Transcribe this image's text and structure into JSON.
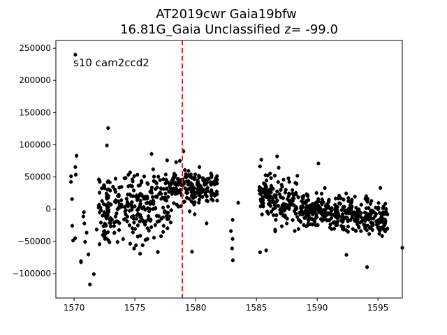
{
  "chart_data": {
    "type": "scatter",
    "title_line1": "AT2019cwr  Gaia19bfw",
    "title_line2": "16.81G_Gaia Unclassified z= -99.0",
    "annotation": "s10 cam2ccd2",
    "xlabel": "",
    "ylabel": "",
    "xlim": [
      1568.5,
      1597
    ],
    "ylim": [
      -138000,
      262000
    ],
    "x_ticks": [
      1570,
      1575,
      1580,
      1585,
      1590,
      1595
    ],
    "y_ticks": [
      -100000,
      -50000,
      0,
      50000,
      100000,
      150000,
      200000,
      250000
    ],
    "x_tick_labels": [
      "1570",
      "1575",
      "1580",
      "1585",
      "1590",
      "1595"
    ],
    "y_tick_labels": [
      "−100000",
      "−50000",
      "0",
      "50000",
      "100000",
      "150000",
      "200000",
      "250000"
    ],
    "vline_x": 1578.9,
    "vline_color": "#d62728",
    "marker_color": "#000000",
    "grid": false,
    "legend": "none",
    "series": [
      {
        "segments": [
          {
            "x0": 1569.7,
            "x1": 1570.3,
            "n": 8,
            "center": 20000,
            "spread": 60000,
            "slope": 0,
            "seed": 11
          },
          {
            "x0": 1570.4,
            "x1": 1571.9,
            "n": 10,
            "center": -50000,
            "spread": 35000,
            "slope": 0,
            "seed": 12
          },
          {
            "x0": 1572.0,
            "x1": 1575.0,
            "n": 150,
            "center": 0,
            "spread": 32000,
            "slope": 0,
            "seed": 13
          },
          {
            "x0": 1575.0,
            "x1": 1578.0,
            "n": 150,
            "center": 10000,
            "spread": 34000,
            "slope": 7000,
            "seed": 14
          },
          {
            "x0": 1578.0,
            "x1": 1581.8,
            "n": 180,
            "center": 35000,
            "spread": 17000,
            "slope": 0,
            "seed": 15
          },
          {
            "x0": 1582.8,
            "x1": 1583.8,
            "n": 3,
            "center": -20000,
            "spread": 35000,
            "slope": 0,
            "seed": 16
          },
          {
            "x0": 1585.2,
            "x1": 1588.5,
            "n": 150,
            "center": 15000,
            "spread": 23000,
            "slope": -5000,
            "seed": 17
          },
          {
            "x0": 1588.5,
            "x1": 1595.8,
            "n": 360,
            "center": -8000,
            "spread": 17000,
            "slope": -2000,
            "seed": 18
          }
        ],
        "points": [
          {
            "x": 1570.1,
            "y": 240000
          },
          {
            "x": 1570.2,
            "y": 83000
          },
          {
            "x": 1571.3,
            "y": -117000
          },
          {
            "x": 1572.8,
            "y": 126000
          },
          {
            "x": 1572.7,
            "y": 99000
          },
          {
            "x": 1578.7,
            "y": 75000
          },
          {
            "x": 1579.0,
            "y": 90000
          },
          {
            "x": 1579.7,
            "y": -66000
          },
          {
            "x": 1580.9,
            "y": -22000
          },
          {
            "x": 1583.5,
            "y": 10000
          },
          {
            "x": 1582.9,
            "y": -34000
          },
          {
            "x": 1583.0,
            "y": -61000
          },
          {
            "x": 1585.3,
            "y": -67000
          },
          {
            "x": 1585.8,
            "y": -64000
          },
          {
            "x": 1586.7,
            "y": 82000
          },
          {
            "x": 1590.1,
            "y": 71000
          },
          {
            "x": 1592.4,
            "y": -71000
          },
          {
            "x": 1594.1,
            "y": -90000
          },
          {
            "x": 1595.2,
            "y": 33000
          },
          {
            "x": 1597.0,
            "y": -60000
          }
        ]
      }
    ]
  }
}
